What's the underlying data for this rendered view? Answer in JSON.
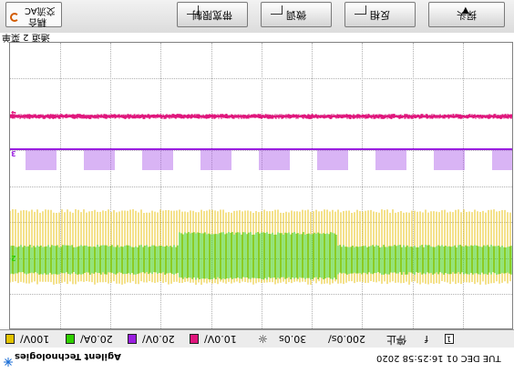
{
  "menu": {
    "coupling_line1": "交流AC",
    "coupling_line2": "耦合",
    "softkeys": [
      "带宽限制",
      "微调",
      "反相",
      "探头"
    ]
  },
  "caption": "通道 2 菜单",
  "channels": [
    {
      "id": "1",
      "color": "#e2c300",
      "scale": "100V/"
    },
    {
      "id": "2",
      "color": "#2fd000",
      "scale": "20.0A/"
    },
    {
      "id": "3",
      "color": "#9a1ee0",
      "scale": "20.0V/"
    },
    {
      "id": "4",
      "color": "#e0157c",
      "scale": "10.0V/"
    }
  ],
  "trigger_marker": "T",
  "status": {
    "delay": "30.0s",
    "timebase": "200.0s/",
    "run_state": "停止",
    "edge": "f",
    "trig_ch": "1"
  },
  "brand": "Agilent Technologies",
  "timestamp": "TUE DEC 01 16:25:58 2020"
}
